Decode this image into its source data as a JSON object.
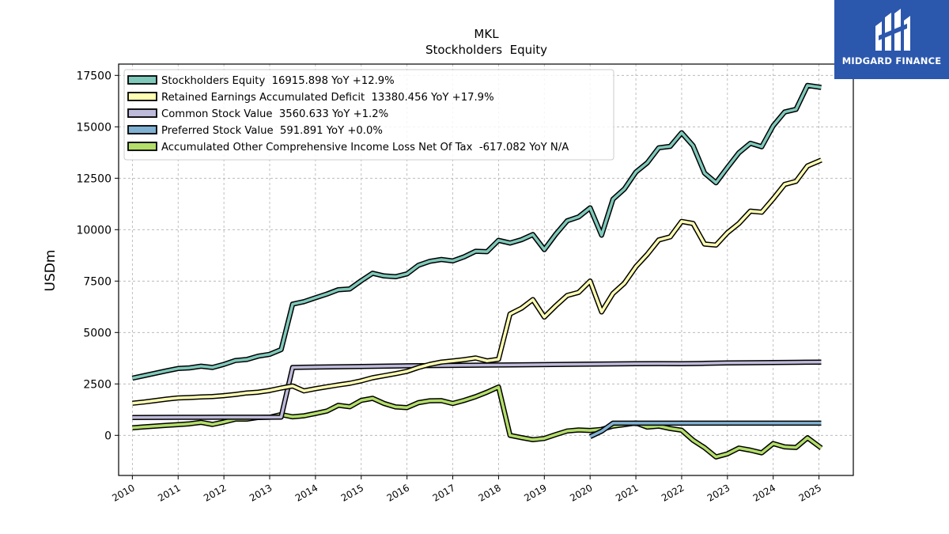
{
  "chart_data": {
    "type": "line",
    "title": "MKL",
    "subtitle": "Stockholders  Equity",
    "xlabel": "",
    "ylabel": "USDm",
    "xlim": [
      2009.7,
      2025.75
    ],
    "ylim": [
      -1950,
      18050
    ],
    "yticks": [
      0,
      2500,
      5000,
      7500,
      10000,
      12500,
      15000,
      17500
    ],
    "xticks": [
      2010,
      2011,
      2012,
      2013,
      2014,
      2015,
      2016,
      2017,
      2018,
      2019,
      2020,
      2021,
      2022,
      2023,
      2024,
      2025
    ],
    "grid": true,
    "legend_position": "top-left",
    "series": [
      {
        "name": "Stockholders Equity",
        "legend_label": "Stockholders Equity  16915.898 YoY +12.9%",
        "color": "#7fc9bb",
        "points": [
          [
            2010.0,
            2780
          ],
          [
            2010.25,
            2900
          ],
          [
            2010.5,
            3020
          ],
          [
            2010.75,
            3140
          ],
          [
            2011.0,
            3250
          ],
          [
            2011.25,
            3280
          ],
          [
            2011.5,
            3360
          ],
          [
            2011.75,
            3300
          ],
          [
            2012.0,
            3450
          ],
          [
            2012.25,
            3640
          ],
          [
            2012.5,
            3690
          ],
          [
            2012.75,
            3850
          ],
          [
            2013.0,
            3940
          ],
          [
            2013.25,
            4170
          ],
          [
            2013.5,
            6380
          ],
          [
            2013.75,
            6500
          ],
          [
            2014.0,
            6690
          ],
          [
            2014.25,
            6870
          ],
          [
            2014.5,
            7080
          ],
          [
            2014.75,
            7120
          ],
          [
            2015.0,
            7520
          ],
          [
            2015.25,
            7880
          ],
          [
            2015.5,
            7750
          ],
          [
            2015.75,
            7710
          ],
          [
            2016.0,
            7850
          ],
          [
            2016.25,
            8270
          ],
          [
            2016.5,
            8460
          ],
          [
            2016.75,
            8550
          ],
          [
            2017.0,
            8480
          ],
          [
            2017.25,
            8680
          ],
          [
            2017.5,
            8950
          ],
          [
            2017.75,
            8930
          ],
          [
            2018.0,
            9480
          ],
          [
            2018.25,
            9350
          ],
          [
            2018.5,
            9510
          ],
          [
            2018.75,
            9760
          ],
          [
            2019.0,
            9030
          ],
          [
            2019.25,
            9780
          ],
          [
            2019.5,
            10430
          ],
          [
            2019.75,
            10620
          ],
          [
            2020.0,
            11060
          ],
          [
            2020.25,
            9730
          ],
          [
            2020.5,
            11480
          ],
          [
            2020.75,
            11980
          ],
          [
            2021.0,
            12800
          ],
          [
            2021.25,
            13250
          ],
          [
            2021.5,
            13980
          ],
          [
            2021.75,
            14050
          ],
          [
            2022.0,
            14710
          ],
          [
            2022.25,
            14080
          ],
          [
            2022.5,
            12750
          ],
          [
            2022.75,
            12280
          ],
          [
            2023.0,
            13020
          ],
          [
            2023.25,
            13740
          ],
          [
            2023.5,
            14200
          ],
          [
            2023.75,
            14030
          ],
          [
            2024.0,
            15050
          ],
          [
            2024.25,
            15720
          ],
          [
            2024.5,
            15850
          ],
          [
            2024.75,
            17010
          ],
          [
            2025.05,
            16916
          ]
        ]
      },
      {
        "name": "Retained Earnings Accumulated Deficit",
        "legend_label": "Retained Earnings Accumulated Deficit  13380.456 YoY +17.9%",
        "color": "#ffffb3",
        "points": [
          [
            2010.0,
            1560
          ],
          [
            2010.25,
            1620
          ],
          [
            2010.5,
            1690
          ],
          [
            2010.75,
            1760
          ],
          [
            2011.0,
            1820
          ],
          [
            2011.25,
            1840
          ],
          [
            2011.5,
            1870
          ],
          [
            2011.75,
            1890
          ],
          [
            2012.0,
            1930
          ],
          [
            2012.25,
            1990
          ],
          [
            2012.5,
            2060
          ],
          [
            2012.75,
            2100
          ],
          [
            2013.0,
            2180
          ],
          [
            2013.25,
            2300
          ],
          [
            2013.5,
            2400
          ],
          [
            2013.75,
            2160
          ],
          [
            2014.0,
            2270
          ],
          [
            2014.25,
            2360
          ],
          [
            2014.5,
            2450
          ],
          [
            2014.75,
            2530
          ],
          [
            2015.0,
            2650
          ],
          [
            2015.25,
            2800
          ],
          [
            2015.5,
            2900
          ],
          [
            2015.75,
            3000
          ],
          [
            2016.0,
            3110
          ],
          [
            2016.25,
            3300
          ],
          [
            2016.5,
            3450
          ],
          [
            2016.75,
            3560
          ],
          [
            2017.0,
            3620
          ],
          [
            2017.25,
            3680
          ],
          [
            2017.5,
            3760
          ],
          [
            2017.75,
            3620
          ],
          [
            2018.0,
            3700
          ],
          [
            2018.25,
            5900
          ],
          [
            2018.5,
            6180
          ],
          [
            2018.75,
            6600
          ],
          [
            2019.0,
            5750
          ],
          [
            2019.25,
            6300
          ],
          [
            2019.5,
            6800
          ],
          [
            2019.75,
            6950
          ],
          [
            2020.0,
            7500
          ],
          [
            2020.25,
            6000
          ],
          [
            2020.5,
            6900
          ],
          [
            2020.75,
            7400
          ],
          [
            2021.0,
            8200
          ],
          [
            2021.25,
            8800
          ],
          [
            2021.5,
            9500
          ],
          [
            2021.75,
            9650
          ],
          [
            2022.0,
            10400
          ],
          [
            2022.25,
            10300
          ],
          [
            2022.5,
            9300
          ],
          [
            2022.75,
            9250
          ],
          [
            2023.0,
            9850
          ],
          [
            2023.25,
            10300
          ],
          [
            2023.5,
            10900
          ],
          [
            2023.75,
            10850
          ],
          [
            2024.0,
            11500
          ],
          [
            2024.25,
            12200
          ],
          [
            2024.5,
            12350
          ],
          [
            2024.75,
            13100
          ],
          [
            2025.05,
            13380
          ]
        ]
      },
      {
        "name": "Common Stock Value",
        "legend_label": "Common Stock Value  3560.633 YoY +1.2%",
        "color": "#bebada",
        "points": [
          [
            2010.0,
            870
          ],
          [
            2011.0,
            875
          ],
          [
            2012.0,
            880
          ],
          [
            2012.75,
            880
          ],
          [
            2013.0,
            880
          ],
          [
            2013.25,
            890
          ],
          [
            2013.5,
            3300
          ],
          [
            2014.0,
            3320
          ],
          [
            2015.0,
            3350
          ],
          [
            2016.0,
            3380
          ],
          [
            2017.0,
            3400
          ],
          [
            2018.0,
            3420
          ],
          [
            2019.0,
            3440
          ],
          [
            2020.0,
            3460
          ],
          [
            2021.0,
            3480
          ],
          [
            2021.5,
            3490
          ],
          [
            2022.0,
            3480
          ],
          [
            2022.5,
            3500
          ],
          [
            2023.0,
            3520
          ],
          [
            2023.5,
            3530
          ],
          [
            2024.0,
            3540
          ],
          [
            2024.5,
            3550
          ],
          [
            2025.05,
            3561
          ]
        ]
      },
      {
        "name": "Preferred Stock Value",
        "legend_label": "Preferred Stock Value  591.891 YoY +0.0%",
        "color": "#80b1d3",
        "points": [
          [
            2020.0,
            -60
          ],
          [
            2020.25,
            200
          ],
          [
            2020.5,
            592
          ],
          [
            2021.0,
            592
          ],
          [
            2022.0,
            592
          ],
          [
            2023.0,
            592
          ],
          [
            2024.0,
            592
          ],
          [
            2025.05,
            592
          ]
        ]
      },
      {
        "name": "Accumulated Other Comprehensive Income Loss Net Of Tax",
        "legend_label": "Accumulated Other Comprehensive Income Loss Net Of Tax  -617.082 YoY N/A",
        "color": "#b3de69",
        "points": [
          [
            2010.0,
            370
          ],
          [
            2010.25,
            410
          ],
          [
            2010.5,
            450
          ],
          [
            2010.75,
            490
          ],
          [
            2011.0,
            520
          ],
          [
            2011.25,
            560
          ],
          [
            2011.5,
            630
          ],
          [
            2011.75,
            530
          ],
          [
            2012.0,
            650
          ],
          [
            2012.25,
            790
          ],
          [
            2012.5,
            790
          ],
          [
            2012.75,
            870
          ],
          [
            2013.0,
            880
          ],
          [
            2013.25,
            1010
          ],
          [
            2013.5,
            900
          ],
          [
            2013.75,
            950
          ],
          [
            2014.0,
            1060
          ],
          [
            2014.25,
            1180
          ],
          [
            2014.5,
            1460
          ],
          [
            2014.75,
            1390
          ],
          [
            2015.0,
            1700
          ],
          [
            2015.25,
            1800
          ],
          [
            2015.5,
            1550
          ],
          [
            2015.75,
            1380
          ],
          [
            2016.0,
            1350
          ],
          [
            2016.25,
            1590
          ],
          [
            2016.5,
            1680
          ],
          [
            2016.75,
            1690
          ],
          [
            2017.0,
            1550
          ],
          [
            2017.25,
            1700
          ],
          [
            2017.5,
            1880
          ],
          [
            2017.75,
            2100
          ],
          [
            2018.0,
            2350
          ],
          [
            2018.25,
            0
          ],
          [
            2018.5,
            -110
          ],
          [
            2018.75,
            -210
          ],
          [
            2019.0,
            -150
          ],
          [
            2019.25,
            40
          ],
          [
            2019.5,
            210
          ],
          [
            2019.75,
            260
          ],
          [
            2020.0,
            240
          ],
          [
            2020.25,
            290
          ],
          [
            2020.5,
            450
          ],
          [
            2020.75,
            520
          ],
          [
            2021.0,
            600
          ],
          [
            2021.25,
            400
          ],
          [
            2021.5,
            450
          ],
          [
            2021.75,
            330
          ],
          [
            2022.0,
            250
          ],
          [
            2022.25,
            -240
          ],
          [
            2022.5,
            -600
          ],
          [
            2022.75,
            -1050
          ],
          [
            2023.0,
            -900
          ],
          [
            2023.25,
            -620
          ],
          [
            2023.5,
            -720
          ],
          [
            2023.75,
            -850
          ],
          [
            2024.0,
            -400
          ],
          [
            2024.25,
            -560
          ],
          [
            2024.5,
            -590
          ],
          [
            2024.75,
            -120
          ],
          [
            2025.05,
            -617
          ]
        ]
      }
    ]
  },
  "branding": {
    "logo_text": "MIDGARD FINANCE",
    "logo_bg": "#2b57ad",
    "logo_fg": "#ffffff"
  }
}
